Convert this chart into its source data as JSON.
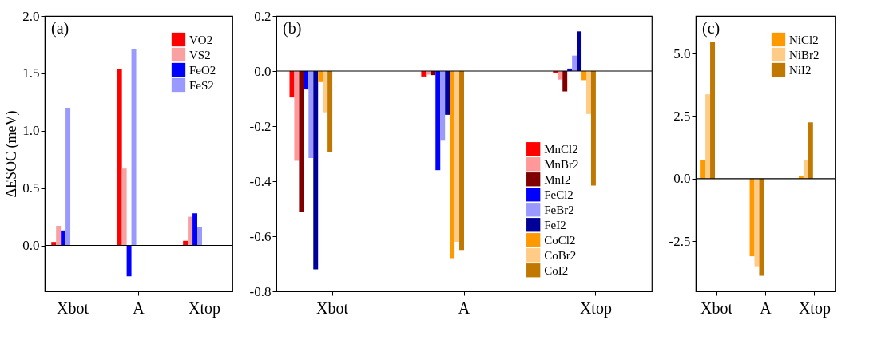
{
  "chart_data": [
    {
      "type": "bar",
      "ylabel": "ΔESOC (meV)",
      "categories": [
        "Xbot",
        "A",
        "Xtop"
      ],
      "ylim": [
        -0.4,
        2.0
      ],
      "yticks": [
        {
          "value": 0,
          "label": "0.0"
        },
        0.5,
        {
          "value": 1,
          "label": "1.0"
        },
        1.5,
        {
          "value": 2,
          "label": "2.0"
        }
      ],
      "series": [
        {
          "name": "VO2",
          "color": "#ff0000",
          "values": [
            0.03,
            1.54,
            0.04
          ]
        },
        {
          "name": "VS2",
          "color": "#f9a0a0",
          "values": [
            0.17,
            0.67,
            0.25
          ]
        },
        {
          "name": "FeO2",
          "color": "#0000ff",
          "values": [
            0.13,
            -0.27,
            0.28
          ]
        },
        {
          "name": "FeS2",
          "color": "#9999ff",
          "values": [
            1.2,
            1.71,
            0.16
          ]
        }
      ],
      "ref_lines": [
        {
          "axis": "y",
          "value": 0
        }
      ],
      "annotations": [
        "(a)"
      ],
      "legend": "top right",
      "grid": false
    },
    {
      "type": "bar",
      "categories": [
        "Xbot",
        "A",
        "Xtop"
      ],
      "ylim": [
        -0.8,
        0.2
      ],
      "yticks": [
        -0.8,
        -0.6,
        -0.4,
        -0.2,
        {
          "value": 0,
          "label": "0.0"
        },
        0.2
      ],
      "series": [
        {
          "name": "MnCl2",
          "color": "#ff0000",
          "values": [
            -0.096,
            -0.02,
            -0.008
          ]
        },
        {
          "name": "MnBr2",
          "color": "#ff9999",
          "values": [
            -0.326,
            -0.013,
            -0.031
          ]
        },
        {
          "name": "MnI2",
          "color": "#800000",
          "values": [
            -0.51,
            -0.015,
            -0.074
          ]
        },
        {
          "name": "FeCl2",
          "color": "#0000ff",
          "values": [
            -0.067,
            -0.36,
            0.009
          ]
        },
        {
          "name": "FeBr2",
          "color": "#9999ff",
          "values": [
            -0.316,
            -0.253,
            0.056
          ]
        },
        {
          "name": "FeI2",
          "color": "#000099",
          "values": [
            -0.72,
            -0.159,
            0.144
          ]
        },
        {
          "name": "CoCl2",
          "color": "#ff9900",
          "values": [
            -0.04,
            -0.68,
            -0.033
          ]
        },
        {
          "name": "CoBr2",
          "color": "#ffcc88",
          "values": [
            -0.15,
            -0.62,
            -0.156
          ]
        },
        {
          "name": "CoI2",
          "color": "#c07800",
          "values": [
            -0.295,
            -0.65,
            -0.416
          ]
        }
      ],
      "ref_lines": [
        {
          "axis": "y",
          "value": 0
        }
      ],
      "annotations": [
        "(b)"
      ],
      "legend": "bottom right",
      "grid": false
    },
    {
      "type": "bar",
      "categories": [
        "Xbot",
        "A",
        "Xtop"
      ],
      "ylim": [
        -4.5,
        6.5
      ],
      "yticks": [
        -2.5,
        {
          "value": 0,
          "label": "0.0"
        },
        2.5,
        {
          "value": 5,
          "label": "5.0"
        }
      ],
      "series": [
        {
          "name": "NiCl2",
          "color": "#ff9900",
          "values": [
            0.74,
            -3.1,
            0.12
          ]
        },
        {
          "name": "NiBr2",
          "color": "#ffcc88",
          "values": [
            3.37,
            -3.5,
            0.76
          ]
        },
        {
          "name": "NiI2",
          "color": "#c07800",
          "values": [
            5.45,
            -3.88,
            2.25
          ]
        }
      ],
      "ref_lines": [
        {
          "axis": "y",
          "value": 0
        }
      ],
      "annotations": [
        "(c)"
      ],
      "legend": "top right",
      "grid": false
    }
  ]
}
